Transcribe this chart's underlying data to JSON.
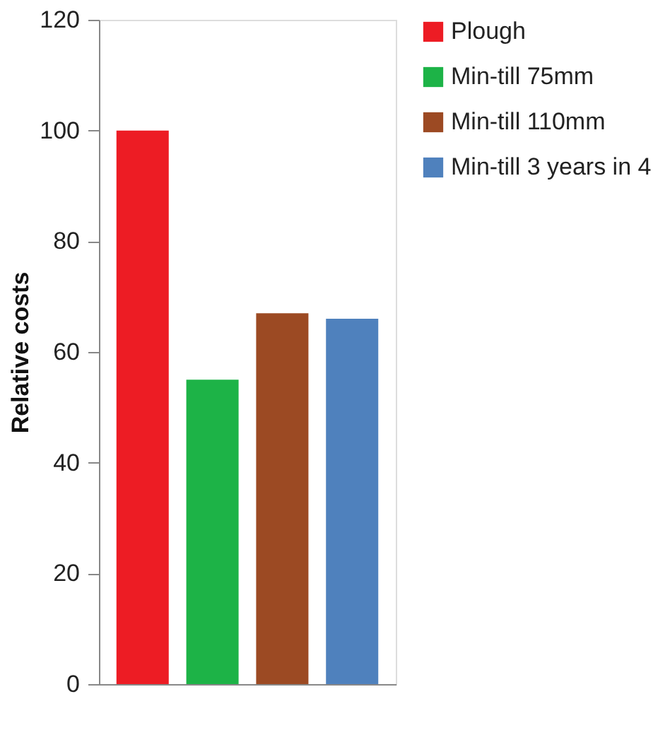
{
  "chart_data": {
    "type": "bar",
    "ylabel": "Relative costs",
    "categories": [
      null,
      null,
      null,
      null
    ],
    "series": [
      {
        "name": "Plough",
        "color": "#ed1c24",
        "values": [
          100,
          null,
          null,
          null
        ]
      },
      {
        "name": "Min-till 75mm",
        "color": "#1db347",
        "values": [
          null,
          55,
          null,
          null
        ]
      },
      {
        "name": "Min-till 110mm",
        "color": "#9c4a23",
        "values": [
          null,
          null,
          67,
          null
        ]
      },
      {
        "name": "Min-till 3 years in 4",
        "color": "#4f81bd",
        "values": [
          null,
          null,
          null,
          66
        ]
      }
    ],
    "ylim": [
      0,
      120
    ],
    "yticks": [
      0,
      20,
      40,
      60,
      80,
      100,
      120
    ],
    "grid": false,
    "legend": "top right",
    "tick_labels": "y"
  }
}
